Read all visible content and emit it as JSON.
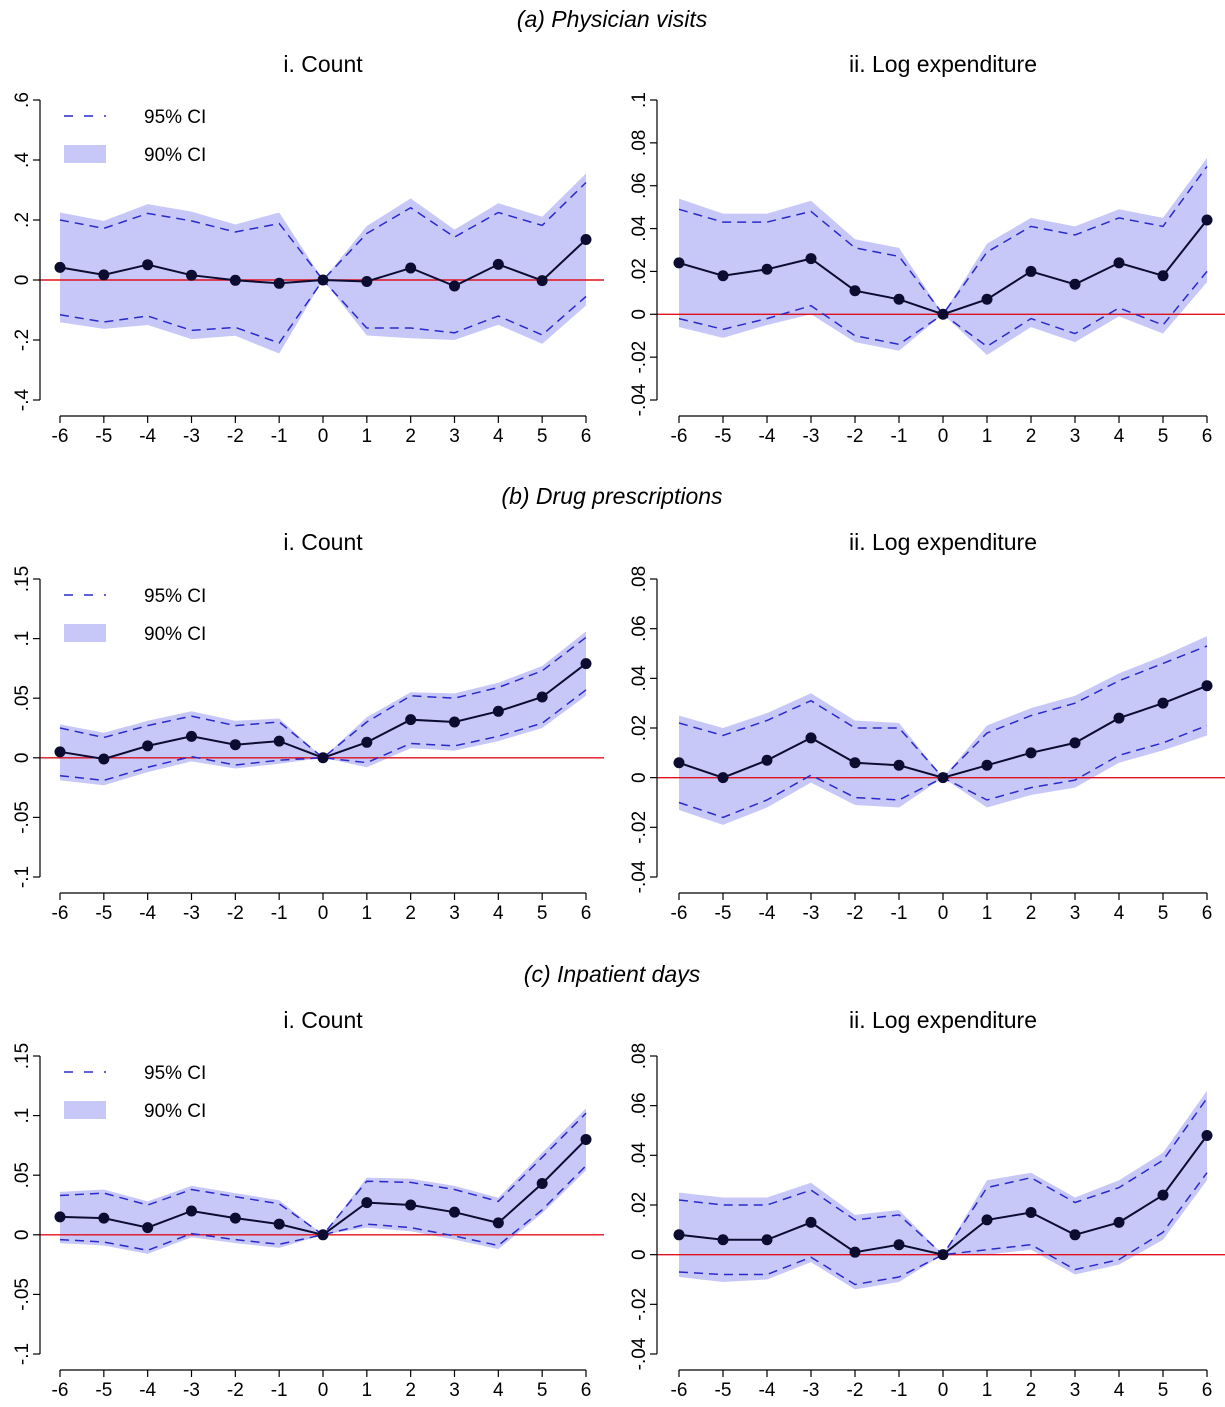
{
  "legend": {
    "ci95": "95% CI",
    "ci90": "90% CI"
  },
  "colors": {
    "band": "#c8c8f8",
    "dash": "#2a2acc",
    "line": "#0c0c30",
    "point": "#0c0c30",
    "zero": "#e0101e",
    "axis": "#000000"
  },
  "sections": [
    {
      "title": "(a) Physician visits"
    },
    {
      "title": "(b) Drug prescriptions"
    },
    {
      "title": "(c) Inpatient days"
    }
  ],
  "chart_data": [
    {
      "type": "line",
      "section": 0,
      "title": "i. Count",
      "x": [
        -6,
        -5,
        -4,
        -3,
        -2,
        -1,
        0,
        1,
        2,
        3,
        4,
        5,
        6
      ],
      "ylim": [
        -0.4,
        0.6
      ],
      "yticks": [
        -0.4,
        -0.2,
        0,
        0.2,
        0.4,
        0.6
      ],
      "ytick_labels": [
        "-.4",
        "-.2",
        "0",
        ".2",
        ".4",
        ".6"
      ],
      "xtick_labels": [
        "-6",
        "-5",
        "-4",
        "-3",
        "-2",
        "-1",
        "0",
        "1",
        "2",
        "3",
        "4",
        "5",
        "6"
      ],
      "estimate": [
        0.042,
        0.017,
        0.051,
        0.016,
        -0.001,
        -0.011,
        0,
        -0.005,
        0.04,
        -0.02,
        0.052,
        -0.002,
        0.135
      ],
      "ci95_upper": [
        0.2,
        0.172,
        0.222,
        0.197,
        0.16,
        0.188,
        0,
        0.155,
        0.241,
        0.143,
        0.225,
        0.182,
        0.325
      ],
      "ci95_lower": [
        -0.116,
        -0.14,
        -0.12,
        -0.168,
        -0.158,
        -0.21,
        0,
        -0.16,
        -0.16,
        -0.176,
        -0.12,
        -0.183,
        -0.055
      ],
      "ci90_upper": [
        0.225,
        0.197,
        0.253,
        0.228,
        0.185,
        0.225,
        0,
        0.18,
        0.272,
        0.168,
        0.256,
        0.211,
        0.355
      ],
      "ci90_lower": [
        -0.141,
        -0.163,
        -0.15,
        -0.197,
        -0.186,
        -0.245,
        0,
        -0.185,
        -0.194,
        -0.2,
        -0.149,
        -0.213,
        -0.085
      ]
    },
    {
      "type": "line",
      "section": 0,
      "title": "ii. Log expenditure",
      "x": [
        -6,
        -5,
        -4,
        -3,
        -2,
        -1,
        0,
        1,
        2,
        3,
        4,
        5,
        6
      ],
      "ylim": [
        -0.04,
        0.1
      ],
      "yticks": [
        -0.04,
        -0.02,
        0,
        0.02,
        0.04,
        0.06,
        0.08,
        0.1
      ],
      "ytick_labels": [
        "-.04",
        "-.02",
        "0",
        ".02",
        ".04",
        ".06",
        ".08",
        ".1"
      ],
      "xtick_labels": [
        "-6",
        "-5",
        "-4",
        "-3",
        "-2",
        "-1",
        "0",
        "1",
        "2",
        "3",
        "4",
        "5",
        "6"
      ],
      "estimate": [
        0.024,
        0.018,
        0.021,
        0.026,
        0.011,
        0.007,
        0,
        0.007,
        0.02,
        0.014,
        0.024,
        0.018,
        0.044
      ],
      "ci95_upper": [
        0.049,
        0.043,
        0.043,
        0.048,
        0.031,
        0.027,
        0,
        0.029,
        0.041,
        0.037,
        0.045,
        0.041,
        0.069
      ],
      "ci95_lower": [
        -0.002,
        -0.007,
        -0.002,
        0.004,
        -0.01,
        -0.014,
        0,
        -0.015,
        -0.002,
        -0.009,
        0.003,
        -0.005,
        0.02
      ],
      "ci90_upper": [
        0.054,
        0.047,
        0.047,
        0.053,
        0.035,
        0.031,
        0,
        0.033,
        0.045,
        0.041,
        0.049,
        0.045,
        0.073
      ],
      "ci90_lower": [
        -0.006,
        -0.011,
        -0.005,
        0.0,
        -0.013,
        -0.017,
        0,
        -0.019,
        -0.006,
        -0.013,
        -0.001,
        -0.009,
        0.015
      ]
    },
    {
      "type": "line",
      "section": 1,
      "title": "i. Count",
      "x": [
        -6,
        -5,
        -4,
        -3,
        -2,
        -1,
        0,
        1,
        2,
        3,
        4,
        5,
        6
      ],
      "ylim": [
        -0.1,
        0.15
      ],
      "yticks": [
        -0.1,
        -0.05,
        0,
        0.05,
        0.1,
        0.15
      ],
      "ytick_labels": [
        "-.1",
        "-.05",
        "0",
        ".05",
        ".1",
        ".15"
      ],
      "xtick_labels": [
        "-6",
        "-5",
        "-4",
        "-3",
        "-2",
        "-1",
        "0",
        "1",
        "2",
        "3",
        "4",
        "5",
        "6"
      ],
      "estimate": [
        0.005,
        -0.001,
        0.01,
        0.018,
        0.011,
        0.014,
        0,
        0.013,
        0.032,
        0.03,
        0.039,
        0.051,
        0.079
      ],
      "ci95_upper": [
        0.025,
        0.017,
        0.027,
        0.035,
        0.027,
        0.03,
        0,
        0.03,
        0.052,
        0.05,
        0.059,
        0.073,
        0.101
      ],
      "ci95_lower": [
        -0.015,
        -0.019,
        -0.008,
        0.001,
        -0.006,
        -0.002,
        0,
        -0.004,
        0.012,
        0.01,
        0.018,
        0.029,
        0.057
      ],
      "ci90_upper": [
        0.028,
        0.021,
        0.031,
        0.039,
        0.031,
        0.033,
        0,
        0.034,
        0.055,
        0.054,
        0.063,
        0.077,
        0.106
      ],
      "ci90_lower": [
        -0.019,
        -0.023,
        -0.012,
        -0.003,
        -0.009,
        -0.005,
        0,
        -0.008,
        0.008,
        0.006,
        0.014,
        0.025,
        0.052
      ]
    },
    {
      "type": "line",
      "section": 1,
      "title": "ii. Log expenditure",
      "x": [
        -6,
        -5,
        -4,
        -3,
        -2,
        -1,
        0,
        1,
        2,
        3,
        4,
        5,
        6
      ],
      "ylim": [
        -0.04,
        0.08
      ],
      "yticks": [
        -0.04,
        -0.02,
        0,
        0.02,
        0.04,
        0.06,
        0.08
      ],
      "ytick_labels": [
        "-.04",
        "-.02",
        "0",
        ".02",
        ".04",
        ".06",
        ".08"
      ],
      "xtick_labels": [
        "-6",
        "-5",
        "-4",
        "-3",
        "-2",
        "-1",
        "0",
        "1",
        "2",
        "3",
        "4",
        "5",
        "6"
      ],
      "estimate": [
        0.006,
        0.0,
        0.007,
        0.016,
        0.006,
        0.005,
        0,
        0.005,
        0.01,
        0.014,
        0.024,
        0.03,
        0.037
      ],
      "ci95_upper": [
        0.022,
        0.017,
        0.023,
        0.031,
        0.02,
        0.02,
        0,
        0.018,
        0.025,
        0.03,
        0.039,
        0.046,
        0.053
      ],
      "ci95_lower": [
        -0.01,
        -0.016,
        -0.009,
        0.001,
        -0.008,
        -0.009,
        0,
        -0.009,
        -0.004,
        -0.001,
        0.009,
        0.014,
        0.021
      ],
      "ci90_upper": [
        0.025,
        0.02,
        0.026,
        0.034,
        0.023,
        0.022,
        0,
        0.021,
        0.028,
        0.033,
        0.042,
        0.049,
        0.057
      ],
      "ci90_lower": [
        -0.013,
        -0.019,
        -0.012,
        -0.002,
        -0.011,
        -0.012,
        0,
        -0.012,
        -0.007,
        -0.004,
        0.006,
        0.011,
        0.017
      ]
    },
    {
      "type": "line",
      "section": 2,
      "title": "i. Count",
      "x": [
        -6,
        -5,
        -4,
        -3,
        -2,
        -1,
        0,
        1,
        2,
        3,
        4,
        5,
        6
      ],
      "ylim": [
        -0.1,
        0.15
      ],
      "yticks": [
        -0.1,
        -0.05,
        0,
        0.05,
        0.1,
        0.15
      ],
      "ytick_labels": [
        "-.1",
        "-.05",
        "0",
        ".05",
        ".1",
        ".15"
      ],
      "xtick_labels": [
        "-6",
        "-5",
        "-4",
        "-3",
        "-2",
        "-1",
        "0",
        "1",
        "2",
        "3",
        "4",
        "5",
        "6"
      ],
      "estimate": [
        0.015,
        0.014,
        0.006,
        0.02,
        0.014,
        0.009,
        0,
        0.027,
        0.025,
        0.019,
        0.01,
        0.043,
        0.08
      ],
      "ci95_upper": [
        0.033,
        0.035,
        0.025,
        0.038,
        0.032,
        0.026,
        0,
        0.045,
        0.044,
        0.038,
        0.028,
        0.065,
        0.102
      ],
      "ci95_lower": [
        -0.004,
        -0.006,
        -0.013,
        0.001,
        -0.004,
        -0.008,
        0,
        0.009,
        0.006,
        -0.001,
        -0.009,
        0.021,
        0.058
      ],
      "ci90_upper": [
        0.036,
        0.038,
        0.028,
        0.041,
        0.035,
        0.029,
        0,
        0.048,
        0.047,
        0.041,
        0.031,
        0.069,
        0.106
      ],
      "ci90_lower": [
        -0.007,
        -0.009,
        -0.016,
        -0.002,
        -0.007,
        -0.011,
        0,
        0.006,
        0.003,
        -0.004,
        -0.012,
        0.018,
        0.054
      ]
    },
    {
      "type": "line",
      "section": 2,
      "title": "ii. Log expenditure",
      "x": [
        -6,
        -5,
        -4,
        -3,
        -2,
        -1,
        0,
        1,
        2,
        3,
        4,
        5,
        6
      ],
      "ylim": [
        -0.04,
        0.08
      ],
      "yticks": [
        -0.04,
        -0.02,
        0,
        0.02,
        0.04,
        0.06,
        0.08
      ],
      "ytick_labels": [
        "-.04",
        "-.02",
        "0",
        ".02",
        ".04",
        ".06",
        ".08"
      ],
      "xtick_labels": [
        "-6",
        "-5",
        "-4",
        "-3",
        "-2",
        "-1",
        "0",
        "1",
        "2",
        "3",
        "4",
        "5",
        "6"
      ],
      "estimate": [
        0.008,
        0.006,
        0.006,
        0.013,
        0.001,
        0.004,
        0,
        0.014,
        0.017,
        0.008,
        0.013,
        0.024,
        0.048
      ],
      "ci95_upper": [
        0.022,
        0.02,
        0.02,
        0.026,
        0.014,
        0.016,
        0,
        0.027,
        0.031,
        0.021,
        0.027,
        0.038,
        0.063
      ],
      "ci95_lower": [
        -0.007,
        -0.008,
        -0.008,
        -0.001,
        -0.012,
        -0.009,
        0,
        0.002,
        0.004,
        -0.006,
        -0.002,
        0.009,
        0.033
      ],
      "ci90_upper": [
        0.025,
        0.023,
        0.023,
        0.029,
        0.016,
        0.018,
        0,
        0.03,
        0.033,
        0.023,
        0.03,
        0.041,
        0.066
      ],
      "ci90_lower": [
        -0.009,
        -0.011,
        -0.01,
        -0.003,
        -0.014,
        -0.011,
        0,
        0.0,
        0.002,
        -0.008,
        -0.004,
        0.006,
        0.03
      ]
    }
  ]
}
